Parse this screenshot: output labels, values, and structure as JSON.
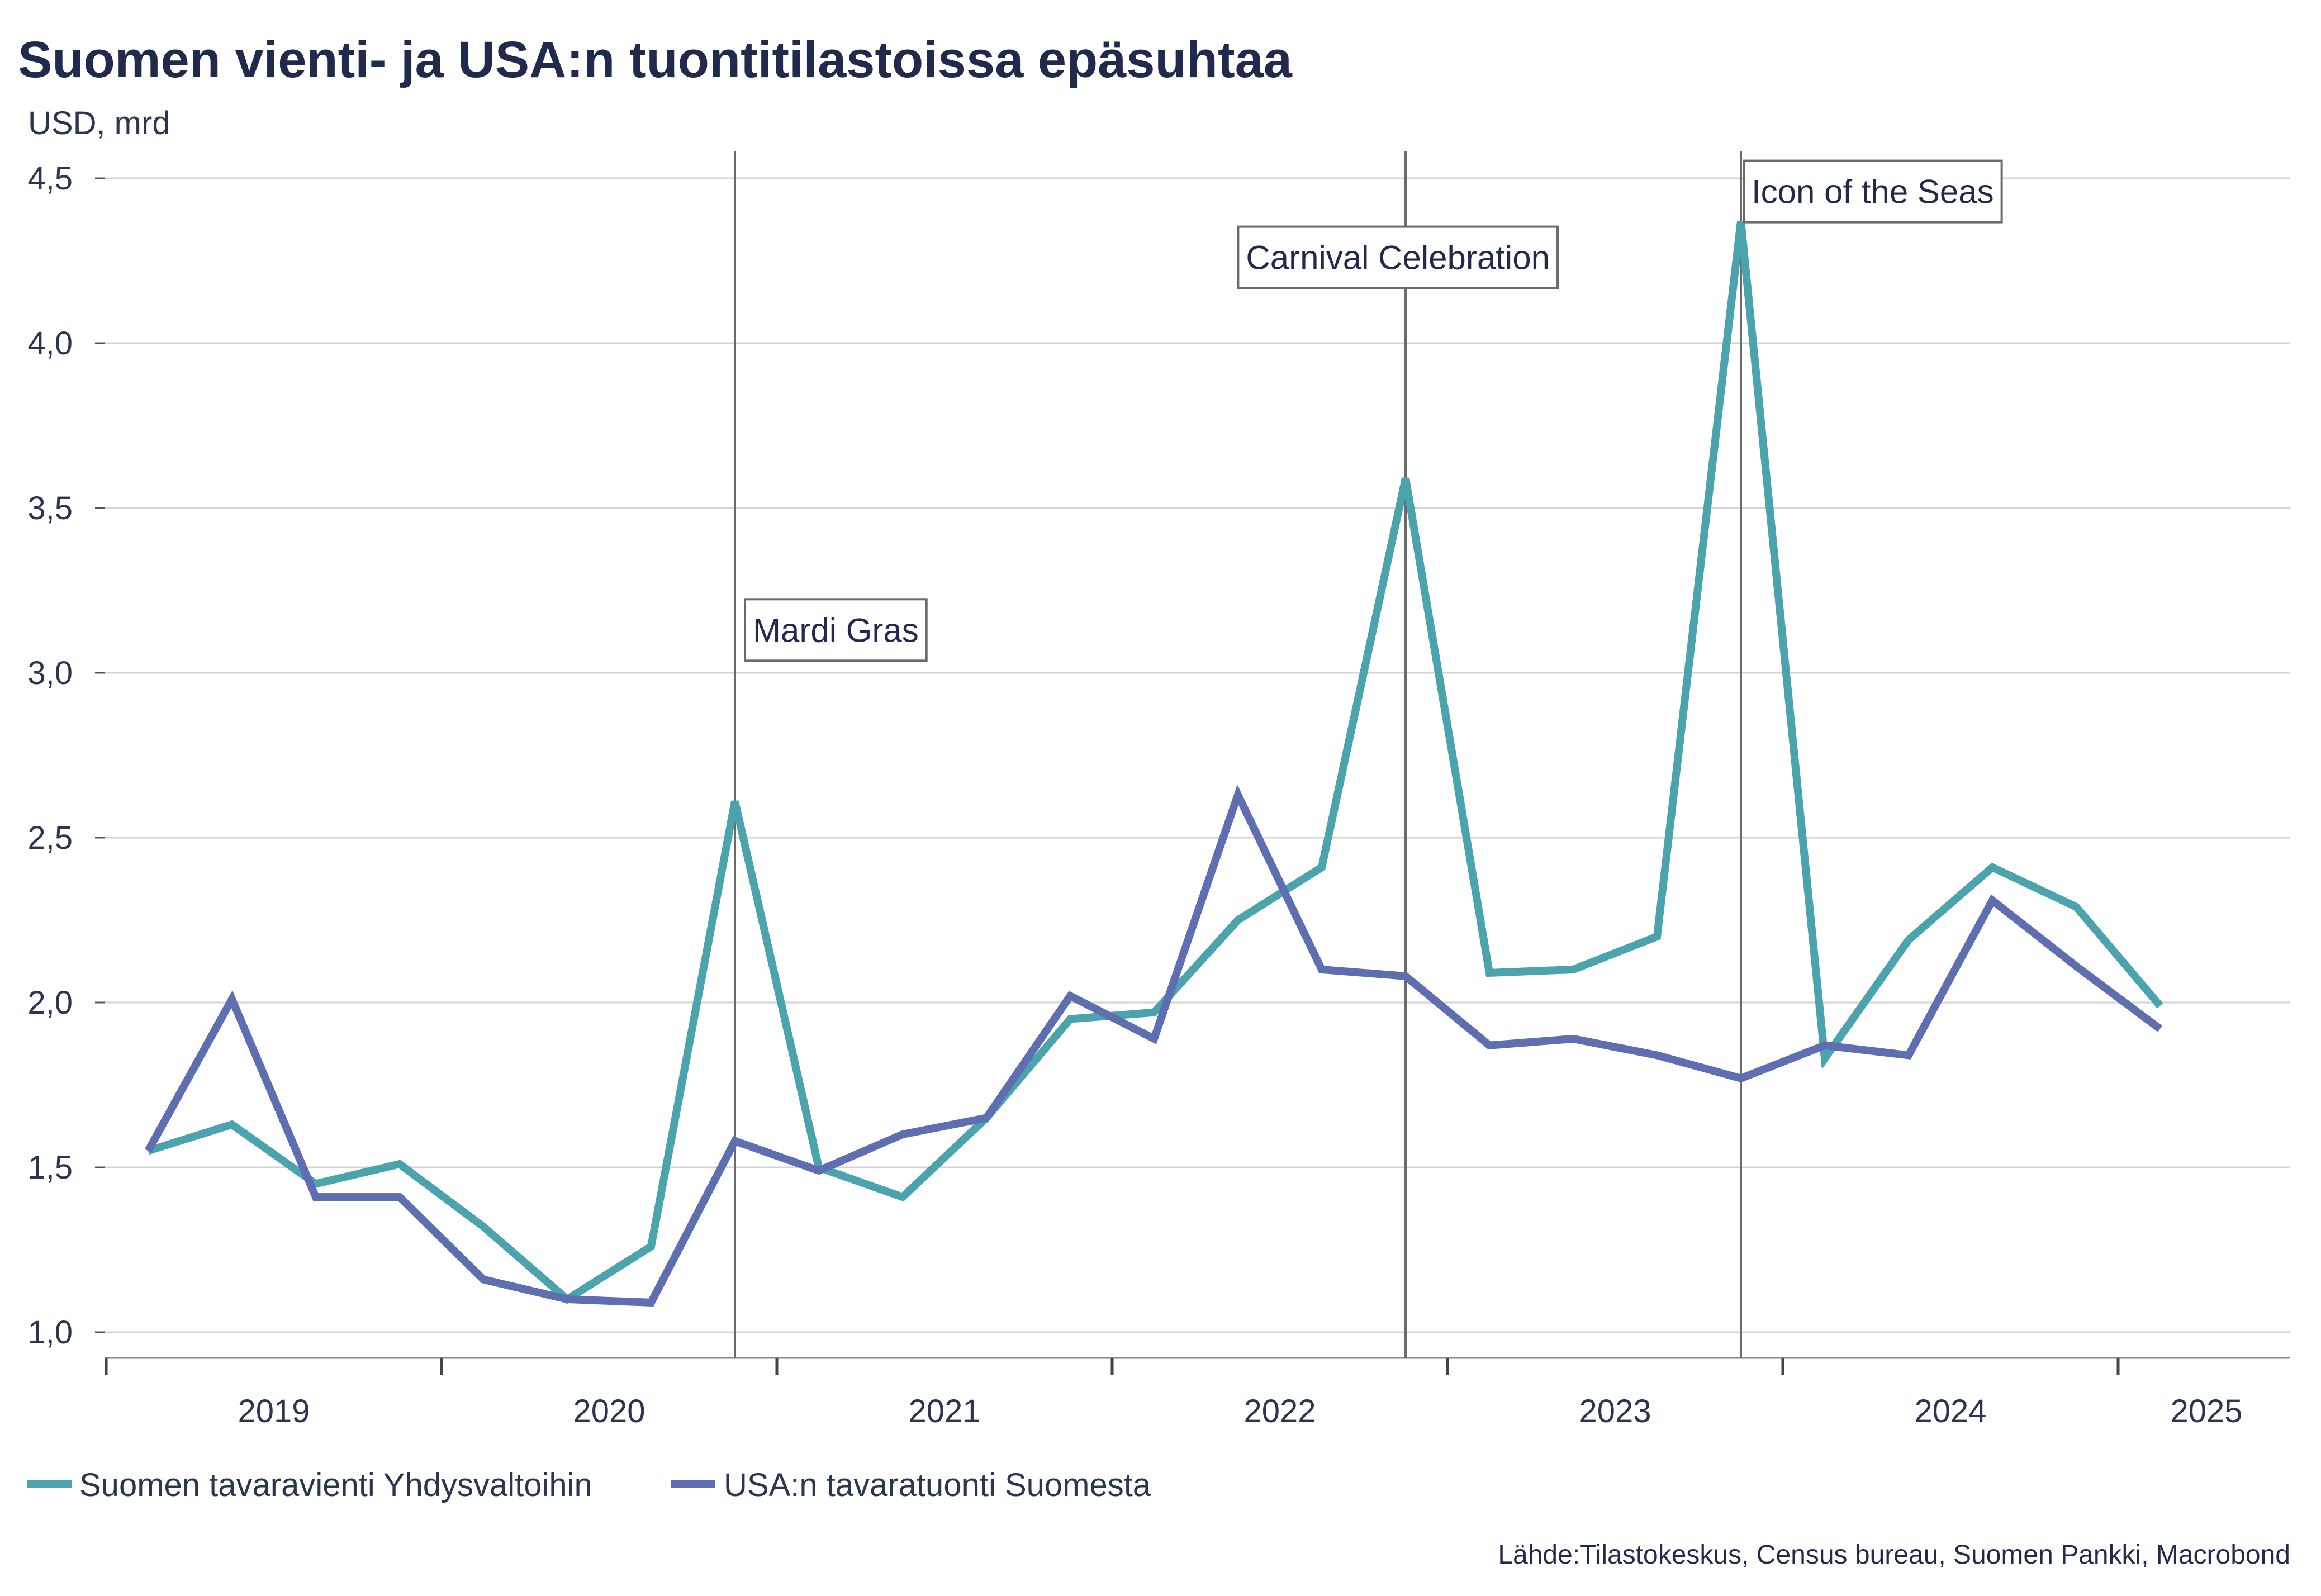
{
  "chart_data": {
    "type": "line",
    "title": "Suomen vienti- ja USA:n tuontitilastoissa epäsuhtaa",
    "ylabel": "USD, mrd",
    "xlabel": "",
    "ylim": [
      1.0,
      4.5
    ],
    "yticks": [
      1.0,
      1.5,
      2.0,
      2.5,
      3.0,
      3.5,
      4.0,
      4.5
    ],
    "ytick_labels": [
      "1,0",
      "1,5",
      "2,0",
      "2,5",
      "3,0",
      "3,5",
      "4,0",
      "4,5"
    ],
    "x_labels": [
      "2019",
      "2020",
      "2021",
      "2022",
      "2023",
      "2024",
      "2025"
    ],
    "grid": true,
    "series": [
      {
        "name": "Suomen tavaravienti Yhdysvaltoihin",
        "color": "#4aa3ad",
        "values": [
          1.55,
          1.63,
          1.45,
          1.51,
          1.32,
          1.1,
          1.26,
          2.61,
          1.5,
          1.41,
          1.65,
          1.95,
          1.97,
          2.25,
          2.41,
          3.59,
          2.09,
          2.1,
          2.2,
          4.37,
          1.83,
          2.19,
          2.41,
          2.29,
          1.99
        ]
      },
      {
        "name": "USA:n tavaratuonti Suomesta",
        "color": "#5f6eb0",
        "values": [
          1.55,
          2.01,
          1.41,
          1.41,
          1.16,
          1.1,
          1.09,
          1.58,
          1.49,
          1.6,
          1.65,
          2.02,
          1.89,
          2.63,
          2.1,
          2.08,
          1.87,
          1.89,
          1.84,
          1.77,
          1.87,
          1.84,
          2.31,
          2.11,
          1.92
        ]
      }
    ],
    "annotations": [
      {
        "label": "Mardi Gras",
        "index": 7,
        "label_y": 3.13
      },
      {
        "label": "Carnival Celebration",
        "index": 15,
        "label_y": 4.26
      },
      {
        "label": "Icon of the Seas",
        "index": 19,
        "label_y": 4.46
      }
    ],
    "legend_position": "bottom-left",
    "source": "Lähde:Tilastokeskus, Census bureau, Suomen Pankki, Macrobond"
  }
}
